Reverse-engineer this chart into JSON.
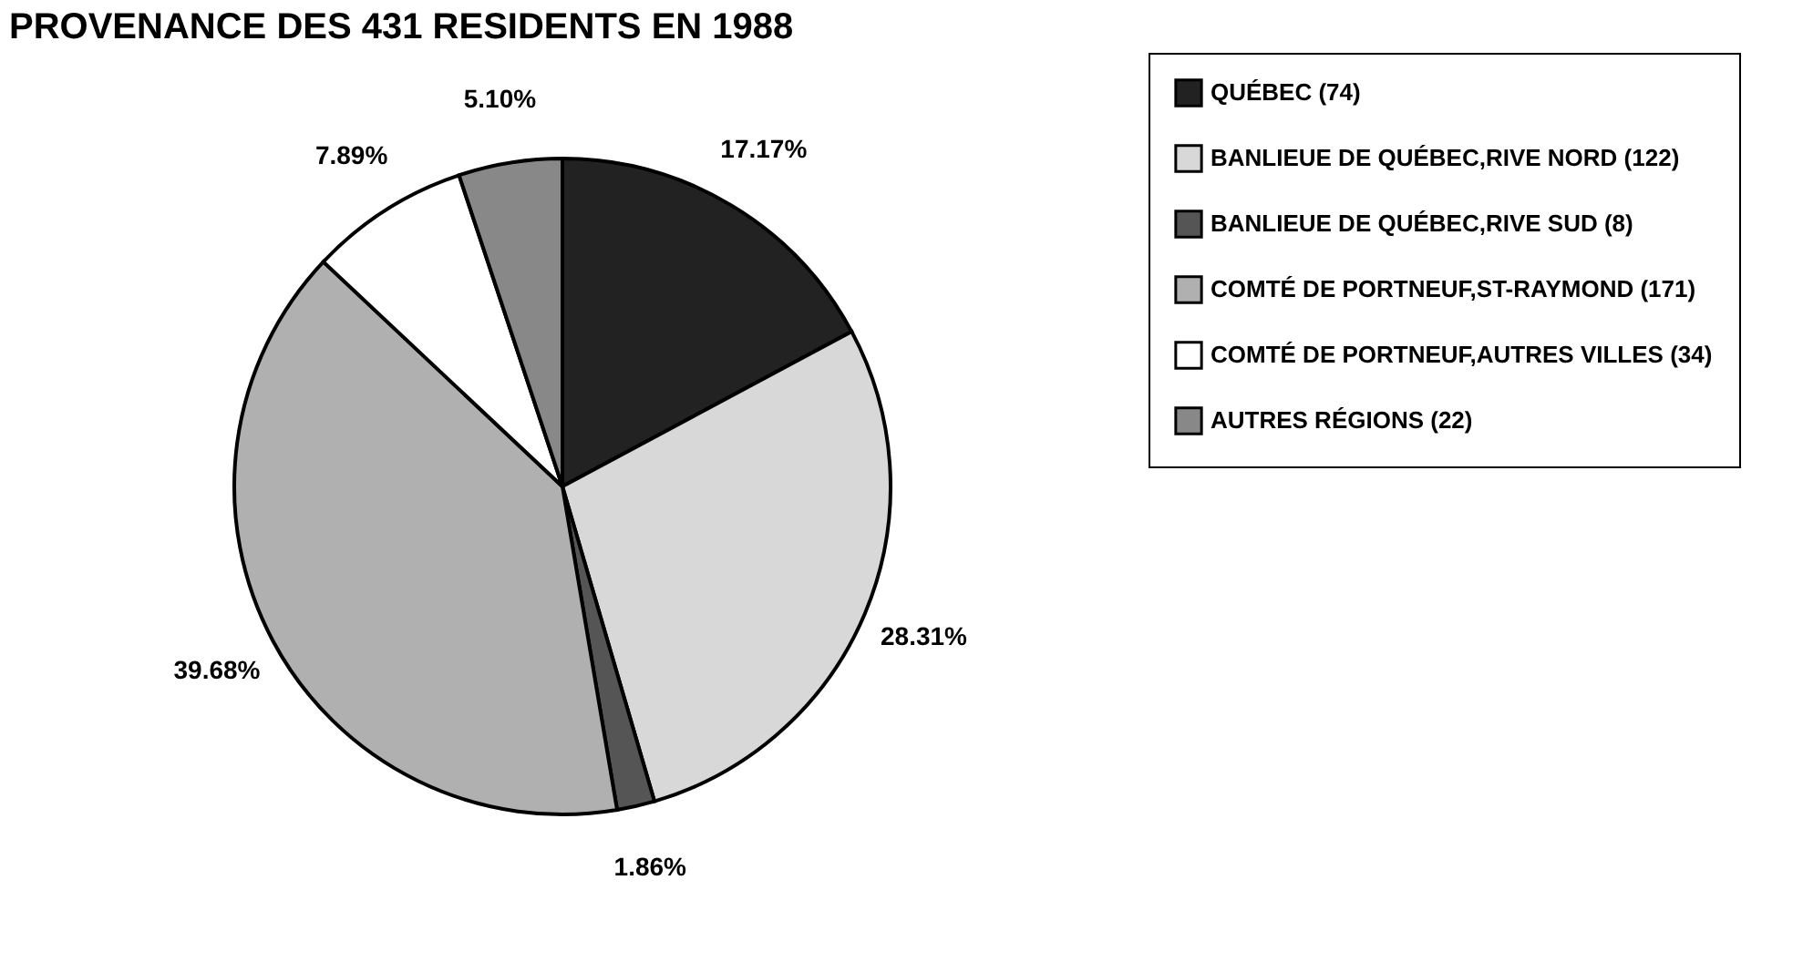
{
  "chart_data": {
    "type": "pie",
    "title": "PROVENANCE DES 431 RESIDENTS EN 1988",
    "categories": [
      "QUÉBEC (74)",
      "BANLIEUE DE QUÉBEC,RIVE NORD (122)",
      "BANLIEUE DE QUÉBEC,RIVE SUD (8)",
      "COMTÉ DE PORTNEUF,ST-RAYMOND (171)",
      "COMTÉ DE PORTNEUF,AUTRES VILLES (34)",
      "AUTRES RÉGIONS (22)"
    ],
    "values": [
      17.17,
      28.31,
      1.86,
      39.68,
      7.89,
      5.1
    ],
    "value_labels": [
      "17.17%",
      "28.31%",
      "1.86%",
      "39.68%",
      "7.89%",
      "5.10%"
    ],
    "colors": [
      "#222222",
      "#d8d8d8",
      "#555555",
      "#b0b0b0",
      "#ffffff",
      "#888888"
    ],
    "legend": "right"
  }
}
